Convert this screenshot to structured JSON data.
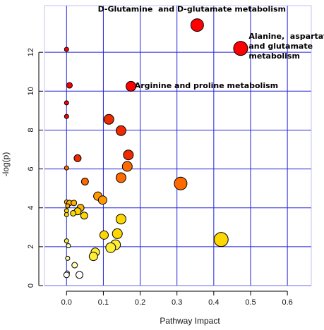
{
  "chart_data": {
    "type": "scatter",
    "xlabel": "Pathway Impact",
    "ylabel": "-log(p)",
    "xlim": [
      -0.06,
      0.665
    ],
    "ylim": [
      0,
      14.4
    ],
    "xticks": [
      "0.0",
      "0.1",
      "0.2",
      "0.3",
      "0.4",
      "0.5",
      "0.6"
    ],
    "yticks": [
      "0",
      "2",
      "4",
      "6",
      "8",
      "10",
      "12"
    ],
    "grid": true,
    "grid_color": "#2323d8",
    "colors": {
      "red": "#ff0000",
      "red_orange": "#f02a00",
      "orange": "#ff6a00",
      "orange_light": "#ff9a00",
      "amber": "#ffb200",
      "yellow": "#ffd700",
      "yellow_pale": "#ffee33",
      "pale": "#ffffb0",
      "white": "#ffffff"
    },
    "points": [
      {
        "x": 0.355,
        "y": 13.4,
        "r": 9,
        "color": "red"
      },
      {
        "x": 0.473,
        "y": 12.2,
        "r": 10,
        "color": "red"
      },
      {
        "x": 0.0,
        "y": 12.15,
        "r": 3,
        "color": "red"
      },
      {
        "x": 0.175,
        "y": 10.25,
        "r": 7,
        "color": "red"
      },
      {
        "x": 0.008,
        "y": 10.3,
        "r": 4,
        "color": "red"
      },
      {
        "x": 0.0,
        "y": 9.4,
        "r": 3,
        "color": "red"
      },
      {
        "x": 0.0,
        "y": 8.7,
        "r": 3,
        "color": "red"
      },
      {
        "x": 0.115,
        "y": 8.55,
        "r": 7,
        "color": "red_orange"
      },
      {
        "x": 0.148,
        "y": 7.97,
        "r": 7,
        "color": "red_orange"
      },
      {
        "x": 0.168,
        "y": 6.72,
        "r": 7,
        "color": "red_orange"
      },
      {
        "x": 0.03,
        "y": 6.55,
        "r": 5,
        "color": "red_orange"
      },
      {
        "x": 0.165,
        "y": 6.13,
        "r": 7,
        "color": "orange"
      },
      {
        "x": 0.0,
        "y": 6.05,
        "r": 3,
        "color": "orange"
      },
      {
        "x": 0.148,
        "y": 5.55,
        "r": 7,
        "color": "orange"
      },
      {
        "x": 0.05,
        "y": 5.35,
        "r": 5,
        "color": "orange"
      },
      {
        "x": 0.31,
        "y": 5.25,
        "r": 9,
        "color": "orange"
      },
      {
        "x": 0.085,
        "y": 4.6,
        "r": 6,
        "color": "orange_light"
      },
      {
        "x": 0.098,
        "y": 4.4,
        "r": 6,
        "color": "orange_light"
      },
      {
        "x": 0.0,
        "y": 4.3,
        "r": 3,
        "color": "amber"
      },
      {
        "x": 0.008,
        "y": 4.25,
        "r": 4,
        "color": "amber"
      },
      {
        "x": 0.02,
        "y": 4.25,
        "r": 4,
        "color": "amber"
      },
      {
        "x": 0.003,
        "y": 4.1,
        "r": 3,
        "color": "amber"
      },
      {
        "x": 0.038,
        "y": 4.0,
        "r": 5,
        "color": "amber"
      },
      {
        "x": 0.0,
        "y": 3.85,
        "r": 3,
        "color": "yellow"
      },
      {
        "x": 0.03,
        "y": 3.82,
        "r": 5,
        "color": "yellow"
      },
      {
        "x": 0.018,
        "y": 3.72,
        "r": 4,
        "color": "yellow"
      },
      {
        "x": 0.0,
        "y": 3.65,
        "r": 3,
        "color": "yellow"
      },
      {
        "x": 0.048,
        "y": 3.6,
        "r": 5,
        "color": "yellow"
      },
      {
        "x": 0.148,
        "y": 3.42,
        "r": 7,
        "color": "yellow"
      },
      {
        "x": 0.138,
        "y": 2.67,
        "r": 7,
        "color": "yellow"
      },
      {
        "x": 0.102,
        "y": 2.6,
        "r": 6,
        "color": "yellow"
      },
      {
        "x": 0.42,
        "y": 2.37,
        "r": 10,
        "color": "yellow"
      },
      {
        "x": 0.0,
        "y": 2.3,
        "r": 3,
        "color": "yellow_pale"
      },
      {
        "x": 0.133,
        "y": 2.1,
        "r": 7,
        "color": "yellow_pale"
      },
      {
        "x": 0.005,
        "y": 2.05,
        "r": 3,
        "color": "pale"
      },
      {
        "x": 0.12,
        "y": 1.95,
        "r": 7,
        "color": "yellow_pale"
      },
      {
        "x": 0.078,
        "y": 1.72,
        "r": 6,
        "color": "yellow_pale"
      },
      {
        "x": 0.073,
        "y": 1.5,
        "r": 6,
        "color": "yellow_pale"
      },
      {
        "x": 0.003,
        "y": 1.4,
        "r": 3,
        "color": "pale"
      },
      {
        "x": 0.022,
        "y": 1.05,
        "r": 4,
        "color": "pale"
      },
      {
        "x": 0.002,
        "y": 0.65,
        "r": 3,
        "color": "white"
      },
      {
        "x": 0.0,
        "y": 0.55,
        "r": 4,
        "color": "white"
      },
      {
        "x": 0.035,
        "y": 0.55,
        "r": 5,
        "color": "white"
      }
    ],
    "annotations": [
      {
        "lines": [
          "D-Glutamine  and D-glutamate metabolism"
        ],
        "x": 0.085,
        "y": 14.1
      },
      {
        "lines": [
          "Alanine,  aspartate",
          "and glutamate",
          "metabolism"
        ],
        "x": 0.495,
        "y": 12.7
      },
      {
        "lines": [
          "Arginine and proline metabolism"
        ],
        "x": 0.185,
        "y": 10.15
      }
    ]
  }
}
